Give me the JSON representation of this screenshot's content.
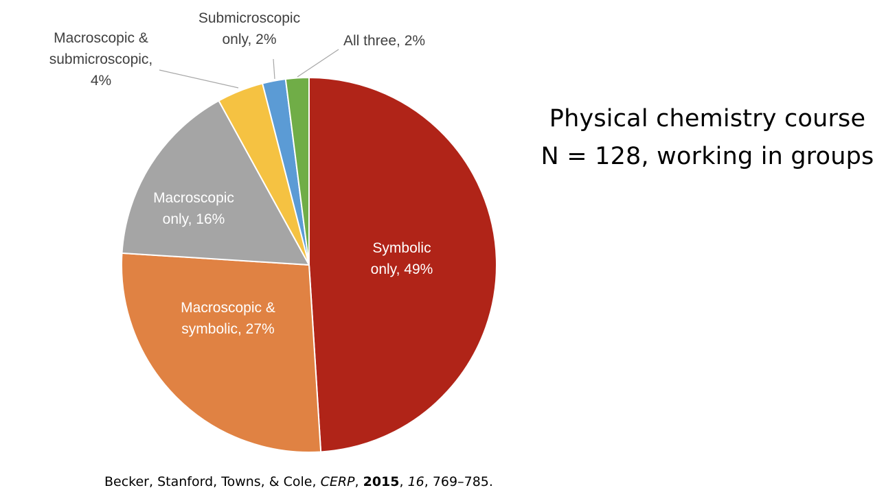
{
  "heading": {
    "line1": "Physical chemistry course",
    "line2": "N = 128, working in groups"
  },
  "citation": {
    "authors": "Becker, Stanford, Towns, & Cole, ",
    "journal": "CERP",
    "sep1": ", ",
    "year": "2015",
    "sep2": ", ",
    "volume": "16",
    "pages": ", 769–785."
  },
  "chart_data": {
    "type": "pie",
    "title": "",
    "start_angle_deg": 0,
    "direction": "clockwise",
    "slices": [
      {
        "key": "symbolic",
        "label_lines": [
          "Symbolic",
          "only, 49%"
        ],
        "value": 49,
        "color": "#b02418",
        "label_color": "#ffffff",
        "label_placement": "inside"
      },
      {
        "key": "macro-symbolic",
        "label_lines": [
          "Macroscopic &",
          "symbolic, 27%"
        ],
        "value": 27,
        "color": "#e08243",
        "label_color": "#ffffff",
        "label_placement": "inside"
      },
      {
        "key": "macro",
        "label_lines": [
          "Macroscopic",
          "only, 16%"
        ],
        "value": 16,
        "color": "#a5a5a5",
        "label_color": "#ffffff",
        "label_placement": "inside"
      },
      {
        "key": "macro-submicro",
        "label_lines": [
          "Macroscopic &",
          "submicroscopic,",
          "4%"
        ],
        "value": 4,
        "color": "#f5c242",
        "label_color": "#404040",
        "label_placement": "outside-leader"
      },
      {
        "key": "submicro",
        "label_lines": [
          "Submicroscopic",
          "only, 2%"
        ],
        "value": 2,
        "color": "#5b9bd5",
        "label_color": "#404040",
        "label_placement": "outside-leader"
      },
      {
        "key": "all-three",
        "label_lines": [
          "All three, 2%"
        ],
        "value": 2,
        "color": "#70ad47",
        "label_color": "#404040",
        "label_placement": "outside-leader"
      }
    ]
  }
}
